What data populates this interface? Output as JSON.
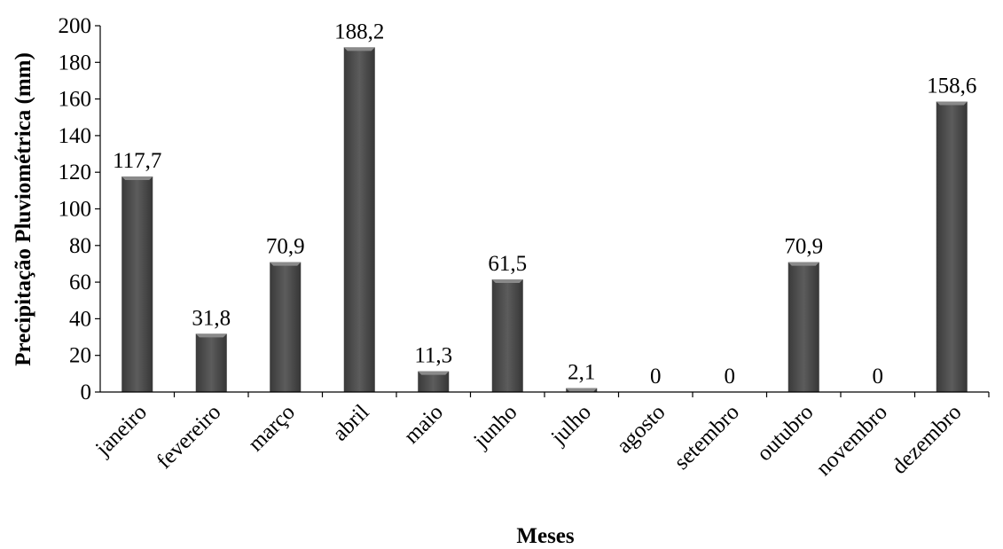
{
  "chart_data": {
    "type": "bar",
    "title": "",
    "xlabel": "Meses",
    "ylabel": "Precipitação Pluviométrica (mm)",
    "ylim": [
      0,
      200
    ],
    "yticks": [
      0,
      20,
      40,
      60,
      80,
      100,
      120,
      140,
      160,
      180,
      200
    ],
    "grid": false,
    "legend": "none",
    "categories": [
      "janeiro",
      "fevereiro",
      "março",
      "abril",
      "maio",
      "junho",
      "julho",
      "agosto",
      "setembro",
      "outubro",
      "novembro",
      "dezembro"
    ],
    "values": [
      117.7,
      31.8,
      70.9,
      188.2,
      11.3,
      61.5,
      2.1,
      0,
      0,
      70.9,
      0,
      158.6
    ],
    "data_labels": [
      "117,7",
      "31,8",
      "70,9",
      "188,2",
      "11,3",
      "61,5",
      "2,1",
      "0",
      "0",
      "70,9",
      "0",
      "158,6"
    ],
    "bar_color": "#4a4a4a"
  }
}
